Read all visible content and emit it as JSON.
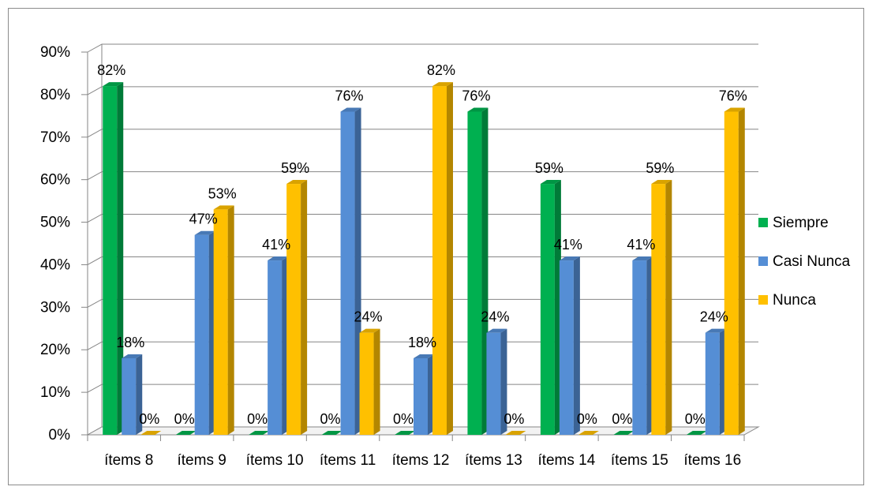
{
  "chart_data": {
    "type": "bar",
    "title": "",
    "xlabel": "",
    "ylabel": "",
    "categories": [
      "ítems 8",
      "ítems 9",
      "ítems 10",
      "ítems 11",
      "ítems 12",
      "ítems 13",
      "ítems 14",
      "ítems 15",
      "ítems 16"
    ],
    "series": [
      {
        "name": "Siempre",
        "color": "#00b050",
        "values": [
          82,
          0,
          0,
          0,
          0,
          76,
          59,
          0,
          0
        ]
      },
      {
        "name": "Casi Nunca",
        "color": "#558ed5",
        "values": [
          18,
          47,
          41,
          76,
          18,
          24,
          41,
          41,
          24
        ]
      },
      {
        "name": "Nunca",
        "color": "#ffc000",
        "values": [
          0,
          53,
          59,
          24,
          82,
          0,
          0,
          59,
          76
        ]
      }
    ],
    "ylim": [
      0,
      90
    ],
    "ytick_step": 10,
    "ytick_format": "percent",
    "grid": true,
    "legend_position": "right",
    "style": "3d-clustered-column"
  }
}
